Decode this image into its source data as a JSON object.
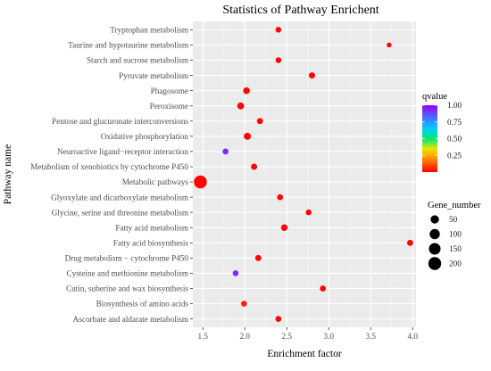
{
  "chart_data": {
    "type": "scatter",
    "title": "Statistics of Pathway Enrichent",
    "xlabel": "Enrichment factor",
    "ylabel": "Pathway name",
    "xlim": [
      1.38,
      4.04
    ],
    "x_ticks": [
      1.5,
      2.0,
      2.5,
      3.0,
      3.5,
      4.0
    ],
    "x_tick_labels": [
      "1.5",
      "2.0",
      "2.5",
      "3.0",
      "3.5",
      "4.0"
    ],
    "grid": true,
    "background": "#ebebeb",
    "points": [
      {
        "pathway": "Tryptophan metabolism",
        "x": 2.4,
        "qvalue": 0.01,
        "gene_number": 10
      },
      {
        "pathway": "Taurine and hypotaurine metabolism",
        "x": 3.72,
        "qvalue": 0.01,
        "gene_number": 3
      },
      {
        "pathway": "Starch and sucrose metabolism",
        "x": 2.4,
        "qvalue": 0.01,
        "gene_number": 10
      },
      {
        "pathway": "Pyruvate metabolism",
        "x": 2.8,
        "qvalue": 0.01,
        "gene_number": 15
      },
      {
        "pathway": "Phagosome",
        "x": 2.02,
        "qvalue": 0.01,
        "gene_number": 22
      },
      {
        "pathway": "Peroxisome",
        "x": 1.95,
        "qvalue": 0.01,
        "gene_number": 24
      },
      {
        "pathway": "Pentose and glucuronate interconversions",
        "x": 2.18,
        "qvalue": 0.01,
        "gene_number": 14
      },
      {
        "pathway": "Oxidative phosphorylation",
        "x": 2.03,
        "qvalue": 0.01,
        "gene_number": 26
      },
      {
        "pathway": "Neuroactive ligand−receptor interaction",
        "x": 1.77,
        "qvalue": 0.93,
        "gene_number": 12
      },
      {
        "pathway": "Metabolism of xenobiotics by cytochrome P450",
        "x": 2.11,
        "qvalue": 0.01,
        "gene_number": 14
      },
      {
        "pathway": "Metabolic pathways",
        "x": 1.47,
        "qvalue": 0.01,
        "gene_number": 205
      },
      {
        "pathway": "Glyoxylate and dicarboxylate metabolism",
        "x": 2.42,
        "qvalue": 0.01,
        "gene_number": 13
      },
      {
        "pathway": "Glycine, serine and threonine metabolism",
        "x": 2.76,
        "qvalue": 0.01,
        "gene_number": 10
      },
      {
        "pathway": "Fatty acid metabolism",
        "x": 2.47,
        "qvalue": 0.01,
        "gene_number": 20
      },
      {
        "pathway": "Fatty acid biosynthesis",
        "x": 3.97,
        "qvalue": 0.01,
        "gene_number": 13
      },
      {
        "pathway": "Drug metabolism − cytochrome P450",
        "x": 2.16,
        "qvalue": 0.01,
        "gene_number": 14
      },
      {
        "pathway": "Cysteine and methionine metabolism",
        "x": 1.89,
        "qvalue": 0.93,
        "gene_number": 11
      },
      {
        "pathway": "Cutin, suberine and wax biosynthesis",
        "x": 2.93,
        "qvalue": 0.01,
        "gene_number": 12
      },
      {
        "pathway": "Biosynthesis of amino acids",
        "x": 1.99,
        "qvalue": 0.05,
        "gene_number": 12
      },
      {
        "pathway": "Ascorbate and aldarate metabolism",
        "x": 2.4,
        "qvalue": 0.01,
        "gene_number": 12
      }
    ],
    "color_legend": {
      "title": "qvalue",
      "range": [
        0.0,
        1.0
      ],
      "ticks": [
        1.0,
        0.75,
        0.5,
        0.25
      ],
      "tick_labels": [
        "1.00",
        "0.75",
        "0.50",
        "0.25"
      ],
      "gradient": [
        {
          "stop": 0.0,
          "color": "#ff0000"
        },
        {
          "stop": 0.2,
          "color": "#ff8c00"
        },
        {
          "stop": 0.35,
          "color": "#e6e600"
        },
        {
          "stop": 0.5,
          "color": "#00e676"
        },
        {
          "stop": 0.65,
          "color": "#00d0ff"
        },
        {
          "stop": 0.82,
          "color": "#4a6bff"
        },
        {
          "stop": 1.0,
          "color": "#9b00ff"
        }
      ]
    },
    "size_legend": {
      "title": "Gene_number",
      "values": [
        50,
        100,
        150,
        200
      ],
      "labels": [
        "50",
        "100",
        "150",
        "200"
      ]
    }
  }
}
